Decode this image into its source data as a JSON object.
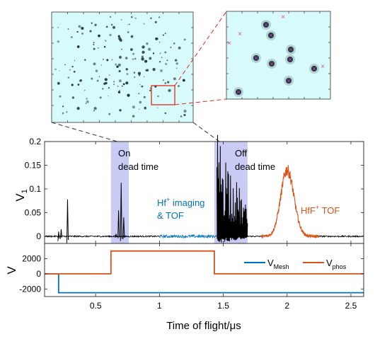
{
  "chart_data": [
    {
      "panel": "camera-image",
      "type": "scatter",
      "description_visible": "phosphor screen image with scattered dark spots, red box marks zoom region",
      "colors": {
        "background": "#d7fbfb",
        "spots": "#1a2a30",
        "box": "#e0281c"
      }
    },
    {
      "panel": "zoom-inset",
      "type": "scatter",
      "colors": {
        "background": "#d7fbfb",
        "blob": "#0e1a22",
        "marker": "#d04ad0"
      }
    },
    {
      "panel": "top-trace",
      "type": "line",
      "ylabel": "V",
      "ylabel_sub": "1",
      "xlim": [
        0.1,
        2.6
      ],
      "ylim": [
        -0.015,
        0.2
      ],
      "yticks": [
        "0.2",
        "0.15",
        "0.1",
        "0.05",
        "0"
      ],
      "ytick_values": [
        0.2,
        0.15,
        0.1,
        0.05,
        0
      ],
      "shaded_regions": [
        {
          "x": [
            0.62,
            0.76
          ],
          "color": "#c9cbf5",
          "label_line1": "On",
          "label_line2": "dead time"
        },
        {
          "x": [
            1.43,
            1.69
          ],
          "color": "#c9cbf5",
          "label_line1": "Off",
          "label_line2": "dead time"
        }
      ],
      "annotations": [
        {
          "line1_main": "Hf",
          "line1_sup": "+",
          "line1_rest": " imaging",
          "line2": "& TOF",
          "color": "#0072bd"
        },
        {
          "main": "HfF",
          "sup": "+",
          "rest": " TOF",
          "color": "#d95319"
        }
      ],
      "series": [
        {
          "segment": "baseline",
          "color": "#000000",
          "x_range": [
            0.1,
            2.6
          ]
        },
        {
          "segment": "hf-imaging",
          "color": "#0072bd",
          "x_range": [
            1.0,
            1.45
          ]
        },
        {
          "segment": "hff-tof",
          "color": "#d95319",
          "x_range": [
            1.8,
            2.25
          ],
          "peak_x": 2.0,
          "peak_y": 0.14
        }
      ],
      "spikes": [
        {
          "x": 0.21,
          "ymin": -0.01,
          "ymax": 0.01
        },
        {
          "x": 0.23,
          "ymin": -0.005,
          "ymax": 0.015
        },
        {
          "x": 0.28,
          "ymin": -0.015,
          "ymax": 0.078
        },
        {
          "x": 0.66,
          "ymin": -0.003,
          "ymax": 0.005
        },
        {
          "x": 0.68,
          "ymin": -0.004,
          "ymax": 0.055
        },
        {
          "x": 0.7,
          "ymin": -0.01,
          "ymax": 0.113
        },
        {
          "x": 0.72,
          "ymin": -0.006,
          "ymax": 0.04
        }
      ],
      "burst": {
        "x_start": 1.45,
        "x_end": 1.69,
        "ymax": 0.2,
        "ymin": -0.013
      }
    },
    {
      "panel": "bottom-trace",
      "type": "line",
      "ylabel": "V",
      "xlabel": "Time of flight/μs",
      "xlim": [
        0.1,
        2.6
      ],
      "ylim": [
        -3000,
        4000
      ],
      "yticks": [
        "2000",
        "0",
        "-2000"
      ],
      "ytick_values": [
        2000,
        0,
        -2000
      ],
      "xticks": [
        "0.5",
        "1",
        "1.5",
        "2",
        "2.5"
      ],
      "xtick_values": [
        0.5,
        1,
        1.5,
        2,
        2.5
      ],
      "series": [
        {
          "name_main": "V",
          "name_sub": "Mesh",
          "color": "#0072bd",
          "x": [
            0.1,
            0.21,
            0.21,
            2.6
          ],
          "y": [
            0,
            0,
            -2500,
            -2500
          ]
        },
        {
          "name_main": "V",
          "name_sub": "phos",
          "color": "#d95319",
          "x": [
            0.1,
            0.62,
            0.62,
            1.43,
            1.43,
            2.6
          ],
          "y": [
            0,
            0,
            3000,
            3000,
            0,
            0
          ]
        }
      ],
      "legend_position": "top-right"
    }
  ]
}
